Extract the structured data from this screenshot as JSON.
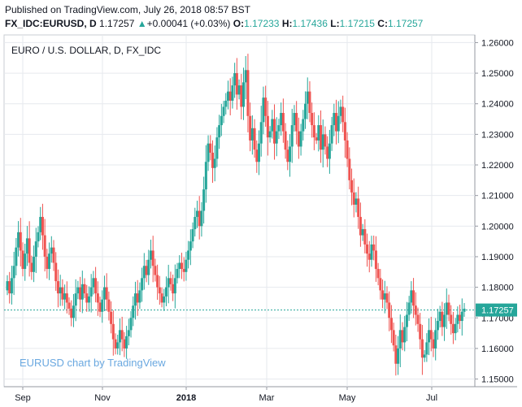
{
  "header": {
    "published": "Published on TradingView.com, July 26, 2018 08:57 BST",
    "symbol": "FX_IDC:EURUSD, D",
    "last": "1.17257",
    "change_arrow": "▲",
    "change": "+0.00041 (+0.03%)",
    "o_label": "O:",
    "o": "1.17233",
    "h_label": "H:",
    "h": "1.17436",
    "l_label": "L:",
    "l": "1.17215",
    "c_label": "C:",
    "c": "1.17257"
  },
  "colors": {
    "up": "#26a69a",
    "down": "#ef5350",
    "grid": "#e6e9ee",
    "last_price_line": "#26a69a",
    "watermark": "#6aa8e0"
  },
  "chart_data": {
    "type": "candlestick",
    "title": "EURO / U.S. DOLLAR, D, FX_IDC",
    "watermark": "EURUSD chart by TradingView",
    "x_tick_labels": [
      "Sep",
      "Nov",
      "2018",
      "Mar",
      "May",
      "Jul"
    ],
    "y_tick_labels": [
      "1.15000",
      "1.16000",
      "1.17000",
      "1.18000",
      "1.19000",
      "1.20000",
      "1.21000",
      "1.22000",
      "1.23000",
      "1.24000",
      "1.25000",
      "1.26000"
    ],
    "ylim": [
      1.1475,
      1.2625
    ],
    "last_price_label": "1.17257",
    "last_price": 1.17257,
    "grid": true,
    "series_close": [
      1.182,
      1.178,
      1.183,
      1.187,
      1.193,
      1.198,
      1.192,
      1.186,
      1.191,
      1.196,
      1.188,
      1.185,
      1.19,
      1.195,
      1.198,
      1.203,
      1.197,
      1.19,
      1.186,
      1.191,
      1.193,
      1.188,
      1.182,
      1.178,
      1.18,
      1.176,
      1.178,
      1.175,
      1.173,
      1.17,
      1.174,
      1.178,
      1.18,
      1.176,
      1.181,
      1.178,
      1.175,
      1.177,
      1.18,
      1.183,
      1.178,
      1.175,
      1.172,
      1.176,
      1.18,
      1.176,
      1.172,
      1.168,
      1.163,
      1.16,
      1.162,
      1.166,
      1.163,
      1.16,
      1.164,
      1.166,
      1.17,
      1.174,
      1.178,
      1.175,
      1.179,
      1.183,
      1.187,
      1.184,
      1.189,
      1.192,
      1.187,
      1.184,
      1.18,
      1.178,
      1.175,
      1.177,
      1.18,
      1.183,
      1.181,
      1.178,
      1.183,
      1.186,
      1.188,
      1.186,
      1.185,
      1.189,
      1.192,
      1.195,
      1.199,
      1.203,
      1.205,
      1.2,
      1.205,
      1.212,
      1.221,
      1.227,
      1.224,
      1.219,
      1.222,
      1.229,
      1.233,
      1.236,
      1.239,
      1.241,
      1.244,
      1.241,
      1.246,
      1.25,
      1.243,
      1.246,
      1.239,
      1.247,
      1.251,
      1.236,
      1.228,
      1.232,
      1.225,
      1.221,
      1.227,
      1.234,
      1.242,
      1.236,
      1.229,
      1.231,
      1.235,
      1.227,
      1.231,
      1.233,
      1.237,
      1.231,
      1.225,
      1.221,
      1.226,
      1.233,
      1.237,
      1.231,
      1.226,
      1.231,
      1.235,
      1.24,
      1.244,
      1.237,
      1.233,
      1.229,
      1.228,
      1.233,
      1.225,
      1.23,
      1.226,
      1.222,
      1.227,
      1.233,
      1.237,
      1.231,
      1.236,
      1.239,
      1.234,
      1.228,
      1.222,
      1.215,
      1.211,
      1.207,
      1.209,
      1.203,
      1.197,
      1.199,
      1.194,
      1.191,
      1.189,
      1.194,
      1.192,
      1.186,
      1.183,
      1.179,
      1.176,
      1.178,
      1.175,
      1.17,
      1.166,
      1.161,
      1.155,
      1.16,
      1.166,
      1.162,
      1.167,
      1.171,
      1.175,
      1.179,
      1.174,
      1.171,
      1.168,
      1.163,
      1.157,
      1.158,
      1.162,
      1.166,
      1.163,
      1.16,
      1.166,
      1.169,
      1.172,
      1.167,
      1.171,
      1.175,
      1.171,
      1.168,
      1.165,
      1.168,
      1.171,
      1.169,
      1.172,
      1.173
    ]
  }
}
